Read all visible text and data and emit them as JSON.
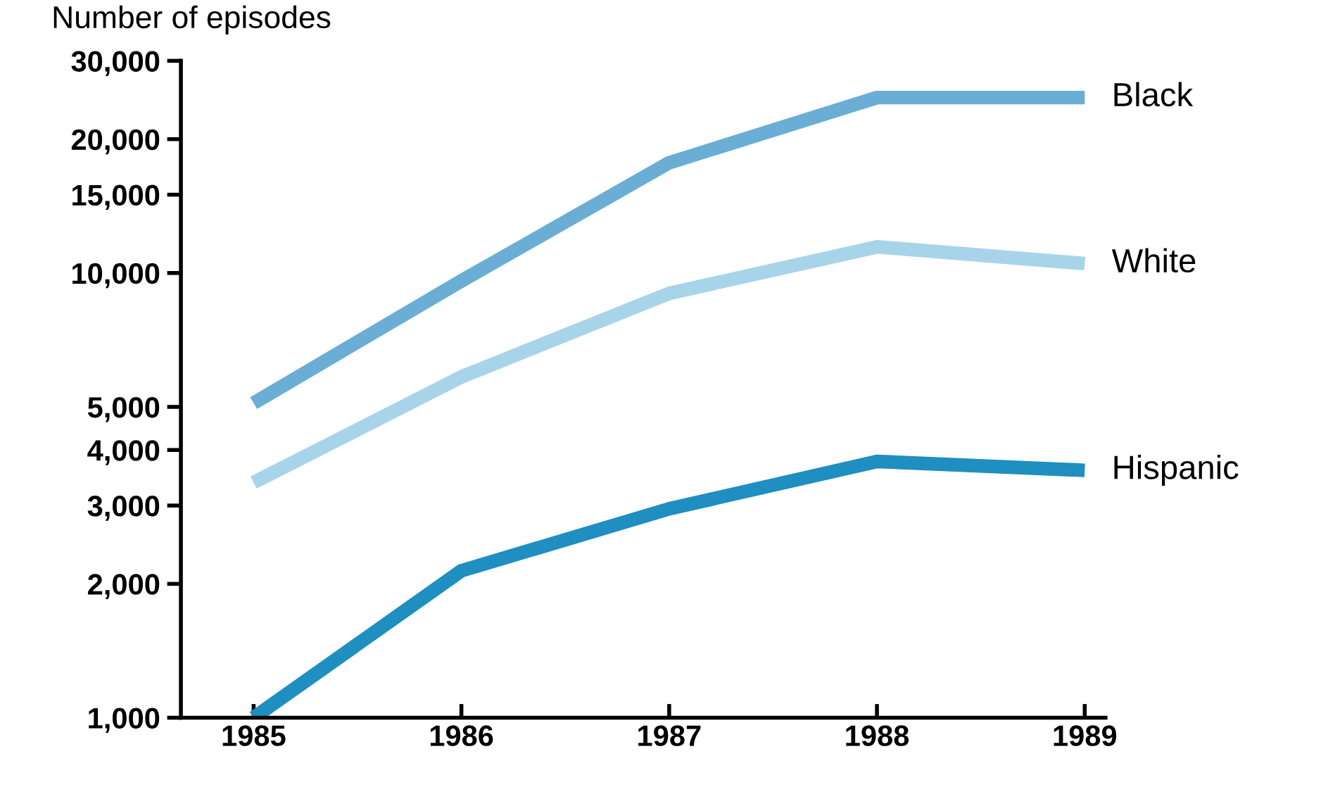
{
  "chart_data": {
    "type": "line",
    "ylabel": "Number of episodes",
    "categories": [
      "1985",
      "1986",
      "1987",
      "1988",
      "1989"
    ],
    "series": [
      {
        "name": "Black",
        "color": "#6aaed6",
        "values": [
          5100,
          9600,
          17700,
          24800,
          24800
        ]
      },
      {
        "name": "White",
        "color": "#a8d4ea",
        "values": [
          3380,
          5840,
          9000,
          11450,
          10500
        ]
      },
      {
        "name": "Hispanic",
        "color": "#1f8ec0",
        "values": [
          1000,
          2140,
          2950,
          3770,
          3600
        ]
      }
    ],
    "log": true,
    "ylim": [
      1000,
      30000
    ],
    "yticks": [
      {
        "value": 1000,
        "label": "1,000"
      },
      {
        "value": 2000,
        "label": "2,000"
      },
      {
        "value": 3000,
        "label": "3,000"
      },
      {
        "value": 4000,
        "label": "4,000"
      },
      {
        "value": 5000,
        "label": "5,000"
      },
      {
        "value": 10000,
        "label": "10,000"
      },
      {
        "value": 15000,
        "label": "15,000"
      },
      {
        "value": 20000,
        "label": "20,000"
      },
      {
        "value": 30000,
        "label": "30,000"
      }
    ],
    "grid": false,
    "legend": false,
    "marker": "none",
    "line_style": "solid"
  }
}
